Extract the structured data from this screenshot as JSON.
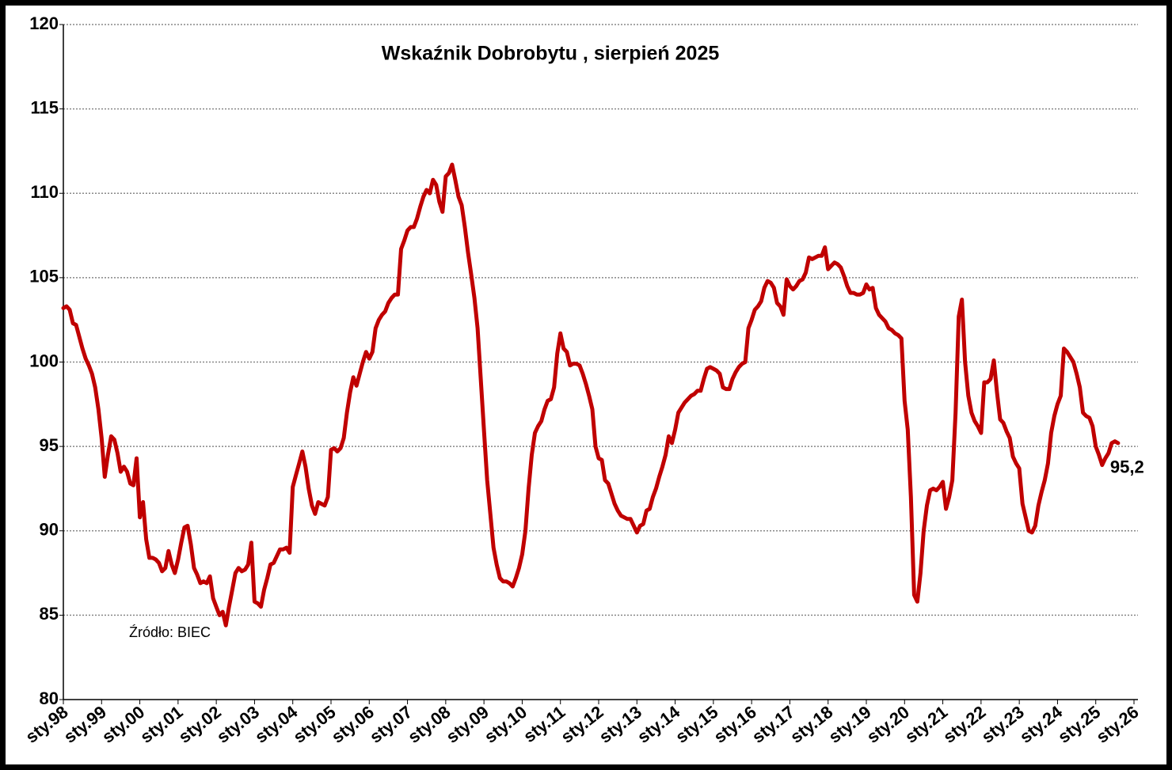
{
  "chart_data": {
    "type": "line",
    "title": "Wskaźnik Dobrobytu , sierpień 2025",
    "annotation": "Źródło: BIEC",
    "color": "#c00000",
    "grid": true,
    "ylim": [
      80,
      120
    ],
    "yticks": [
      80,
      85,
      90,
      95,
      100,
      105,
      110,
      115,
      120
    ],
    "categories": [
      "sty.98",
      null,
      null,
      null,
      null,
      null,
      null,
      null,
      null,
      null,
      null,
      null,
      "sty.99",
      null,
      null,
      null,
      null,
      null,
      null,
      null,
      null,
      null,
      null,
      null,
      "sty.00",
      null,
      null,
      null,
      null,
      null,
      null,
      null,
      null,
      null,
      null,
      null,
      "sty.01",
      null,
      null,
      null,
      null,
      null,
      null,
      null,
      null,
      null,
      null,
      null,
      "sty.02",
      null,
      null,
      null,
      null,
      null,
      null,
      null,
      null,
      null,
      null,
      null,
      "sty.03",
      null,
      null,
      null,
      null,
      null,
      null,
      null,
      null,
      null,
      null,
      null,
      "sty.04",
      null,
      null,
      null,
      null,
      null,
      null,
      null,
      null,
      null,
      null,
      null,
      "sty.05",
      null,
      null,
      null,
      null,
      null,
      null,
      null,
      null,
      null,
      null,
      null,
      "sty.06",
      null,
      null,
      null,
      null,
      null,
      null,
      null,
      null,
      null,
      null,
      null,
      "sty.07",
      null,
      null,
      null,
      null,
      null,
      null,
      null,
      null,
      null,
      null,
      null,
      "sty.08",
      null,
      null,
      null,
      null,
      null,
      null,
      null,
      null,
      null,
      null,
      null,
      "sty.09",
      null,
      null,
      null,
      null,
      null,
      null,
      null,
      null,
      null,
      null,
      null,
      "sty.10",
      null,
      null,
      null,
      null,
      null,
      null,
      null,
      null,
      null,
      null,
      null,
      "sty.11",
      null,
      null,
      null,
      null,
      null,
      null,
      null,
      null,
      null,
      null,
      null,
      "sty.12",
      null,
      null,
      null,
      null,
      null,
      null,
      null,
      null,
      null,
      null,
      null,
      "sty.13",
      null,
      null,
      null,
      null,
      null,
      null,
      null,
      null,
      null,
      null,
      null,
      "sty.14",
      null,
      null,
      null,
      null,
      null,
      null,
      null,
      null,
      null,
      null,
      null,
      "sty.15",
      null,
      null,
      null,
      null,
      null,
      null,
      null,
      null,
      null,
      null,
      null,
      "sty.16",
      null,
      null,
      null,
      null,
      null,
      null,
      null,
      null,
      null,
      null,
      null,
      "sty.17",
      null,
      null,
      null,
      null,
      null,
      null,
      null,
      null,
      null,
      null,
      null,
      "sty.18",
      null,
      null,
      null,
      null,
      null,
      null,
      null,
      null,
      null,
      null,
      null,
      "sty.19",
      null,
      null,
      null,
      null,
      null,
      null,
      null,
      null,
      null,
      null,
      null,
      "sty.20",
      null,
      null,
      null,
      null,
      null,
      null,
      null,
      null,
      null,
      null,
      null,
      "sty.21",
      null,
      null,
      null,
      null,
      null,
      null,
      null,
      null,
      null,
      null,
      null,
      "sty.22",
      null,
      null,
      null,
      null,
      null,
      null,
      null,
      null,
      null,
      null,
      null,
      "sty.23",
      null,
      null,
      null,
      null,
      null,
      null,
      null,
      null,
      null,
      null,
      null,
      "sty.24",
      null,
      null,
      null,
      null,
      null,
      null,
      null,
      null,
      null,
      null,
      null,
      "sty.25",
      null,
      null,
      null,
      null,
      null,
      null,
      null,
      null,
      null,
      null,
      null,
      "sty.26"
    ],
    "values": [
      103.2,
      103.3,
      103.1,
      102.3,
      102.2,
      101.5,
      100.8,
      100.2,
      99.8,
      99.3,
      98.5,
      97.2,
      95.5,
      93.2,
      94.5,
      95.6,
      95.4,
      94.6,
      93.5,
      93.8,
      93.5,
      92.8,
      92.7,
      94.3,
      90.8,
      91.7,
      89.5,
      88.4,
      88.4,
      88.3,
      88.1,
      87.6,
      87.8,
      88.8,
      88.0,
      87.5,
      88.3,
      89.3,
      90.2,
      90.3,
      89.2,
      87.8,
      87.4,
      86.9,
      87.0,
      86.9,
      87.3,
      86.0,
      85.5,
      85.0,
      85.2,
      84.4,
      85.5,
      86.5,
      87.5,
      87.8,
      87.6,
      87.7,
      88.0,
      89.3,
      85.8,
      85.7,
      85.5,
      86.5,
      87.2,
      88.0,
      88.1,
      88.5,
      88.9,
      88.9,
      89.0,
      88.7,
      92.6,
      93.3,
      94.0,
      94.7,
      93.8,
      92.5,
      91.5,
      91.0,
      91.7,
      91.6,
      91.5,
      92.0,
      94.8,
      94.9,
      94.7,
      94.9,
      95.5,
      97.0,
      98.2,
      99.1,
      98.6,
      99.3,
      100.0,
      100.6,
      100.2,
      100.6,
      102.0,
      102.5,
      102.8,
      103.0,
      103.5,
      103.8,
      104.0,
      104.0,
      106.7,
      107.2,
      107.8,
      108.0,
      108.0,
      108.5,
      109.2,
      109.8,
      110.2,
      110.0,
      110.8,
      110.5,
      109.5,
      108.9,
      111.0,
      111.2,
      111.7,
      110.8,
      109.8,
      109.3,
      108.0,
      106.5,
      105.2,
      103.8,
      102.0,
      99.0,
      96.0,
      93.0,
      91.0,
      89.0,
      88.0,
      87.2,
      87.0,
      87.0,
      86.9,
      86.7,
      87.2,
      87.8,
      88.6,
      90.0,
      92.5,
      94.5,
      95.8,
      96.2,
      96.5,
      97.2,
      97.7,
      97.8,
      98.5,
      100.5,
      101.7,
      100.8,
      100.6,
      99.8,
      99.9,
      99.9,
      99.8,
      99.3,
      98.7,
      98.0,
      97.2,
      95.0,
      94.3,
      94.2,
      93.0,
      92.8,
      92.2,
      91.6,
      91.2,
      90.9,
      90.8,
      90.7,
      90.7,
      90.3,
      89.9,
      90.3,
      90.4,
      91.2,
      91.3,
      92.0,
      92.5,
      93.2,
      93.8,
      94.5,
      95.6,
      95.2,
      96.0,
      97.0,
      97.3,
      97.6,
      97.8,
      98.0,
      98.1,
      98.3,
      98.3,
      99.0,
      99.6,
      99.7,
      99.6,
      99.5,
      99.3,
      98.5,
      98.4,
      98.4,
      99.0,
      99.4,
      99.7,
      99.9,
      100.0,
      102.0,
      102.5,
      103.1,
      103.3,
      103.6,
      104.4,
      104.8,
      104.7,
      104.4,
      103.5,
      103.3,
      102.8,
      104.9,
      104.5,
      104.3,
      104.5,
      104.8,
      104.9,
      105.3,
      106.2,
      106.1,
      106.2,
      106.3,
      106.3,
      106.8,
      105.5,
      105.7,
      105.9,
      105.8,
      105.6,
      105.1,
      104.5,
      104.1,
      104.1,
      104.0,
      104.0,
      104.1,
      104.6,
      104.3,
      104.4,
      103.2,
      102.8,
      102.6,
      102.4,
      102.0,
      101.9,
      101.7,
      101.6,
      101.4,
      97.7,
      96.0,
      92.0,
      86.2,
      85.8,
      87.5,
      90.0,
      91.5,
      92.4,
      92.5,
      92.4,
      92.6,
      92.9,
      91.3,
      92.0,
      93.0,
      97.0,
      102.7,
      103.7,
      100.0,
      98.0,
      97.0,
      96.5,
      96.2,
      95.8,
      98.8,
      98.8,
      99.0,
      100.1,
      98.2,
      96.6,
      96.4,
      95.9,
      95.5,
      94.4,
      94.0,
      93.7,
      91.6,
      90.8,
      90.0,
      89.9,
      90.3,
      91.5,
      92.3,
      93.0,
      94.0,
      95.8,
      96.8,
      97.5,
      98.0,
      100.8,
      100.6,
      100.3,
      100.0,
      99.3,
      98.5,
      97.0,
      96.8,
      96.7,
      96.2,
      95.0,
      94.5,
      93.9,
      94.3,
      94.6,
      95.2,
      95.3,
      95.2,
      null,
      null,
      null,
      null,
      null
    ],
    "value_labels": [
      null,
      null,
      null,
      null,
      null,
      null,
      null,
      null,
      null,
      null,
      null,
      null,
      null,
      null,
      null,
      null,
      null,
      null,
      null,
      null,
      null,
      null,
      null,
      null,
      null,
      null,
      null,
      null,
      null,
      null,
      null,
      null,
      null,
      null,
      null,
      null,
      null,
      null,
      null,
      null,
      null,
      null,
      null,
      null,
      null,
      null,
      null,
      null,
      null,
      null,
      null,
      null,
      null,
      null,
      null,
      null,
      null,
      null,
      null,
      null,
      null,
      null,
      null,
      null,
      null,
      null,
      null,
      null,
      null,
      null,
      null,
      null,
      null,
      null,
      null,
      null,
      null,
      null,
      null,
      null,
      null,
      null,
      null,
      null,
      null,
      null,
      null,
      null,
      null,
      null,
      null,
      null,
      null,
      null,
      null,
      null,
      null,
      null,
      null,
      null,
      null,
      null,
      null,
      null,
      null,
      null,
      null,
      null,
      null,
      null,
      null,
      null,
      null,
      null,
      null,
      null,
      null,
      null,
      null,
      null,
      null,
      null,
      null,
      null,
      null,
      null,
      null,
      null,
      null,
      null,
      null,
      null,
      null,
      null,
      null,
      null,
      null,
      null,
      null,
      null,
      null,
      null,
      null,
      null,
      null,
      null,
      null,
      null,
      null,
      null,
      null,
      null,
      null,
      null,
      null,
      null,
      null,
      null,
      null,
      null,
      null,
      null,
      null,
      null,
      null,
      null,
      null,
      null,
      null,
      null,
      null,
      null,
      null,
      null,
      null,
      null,
      null,
      null,
      null,
      null,
      null,
      null,
      null,
      null,
      null,
      null,
      null,
      null,
      null,
      null,
      null,
      null,
      null,
      null,
      null,
      null,
      null,
      null,
      null,
      null,
      null,
      null,
      null,
      null,
      null,
      null,
      null,
      null,
      null,
      null,
      null,
      null,
      null,
      null,
      null,
      null,
      null,
      null,
      null,
      null,
      null,
      null,
      null,
      null,
      null,
      null,
      null,
      null,
      null,
      null,
      null,
      null,
      null,
      null,
      null,
      null,
      null,
      null,
      null,
      null,
      null,
      null,
      null,
      null,
      null,
      null,
      null,
      null,
      null,
      null,
      null,
      null,
      null,
      null,
      null,
      null,
      null,
      null,
      null,
      null,
      null,
      null,
      null,
      null,
      null,
      null,
      null,
      null,
      null,
      null,
      null,
      null,
      null,
      null,
      null,
      null,
      null,
      null,
      null,
      null,
      null,
      null,
      null,
      null,
      null,
      null,
      null,
      null,
      null,
      null,
      null,
      null,
      null,
      null,
      null,
      null,
      null,
      null,
      null,
      null,
      null,
      null,
      null,
      null,
      null,
      null,
      null,
      null,
      null,
      null,
      null,
      null,
      null,
      null,
      null,
      null,
      null,
      null,
      null,
      null,
      null,
      null,
      null,
      null,
      null,
      null,
      null,
      null,
      null,
      null,
      null,
      "95,2",
      null,
      null,
      null,
      null,
      null
    ]
  }
}
